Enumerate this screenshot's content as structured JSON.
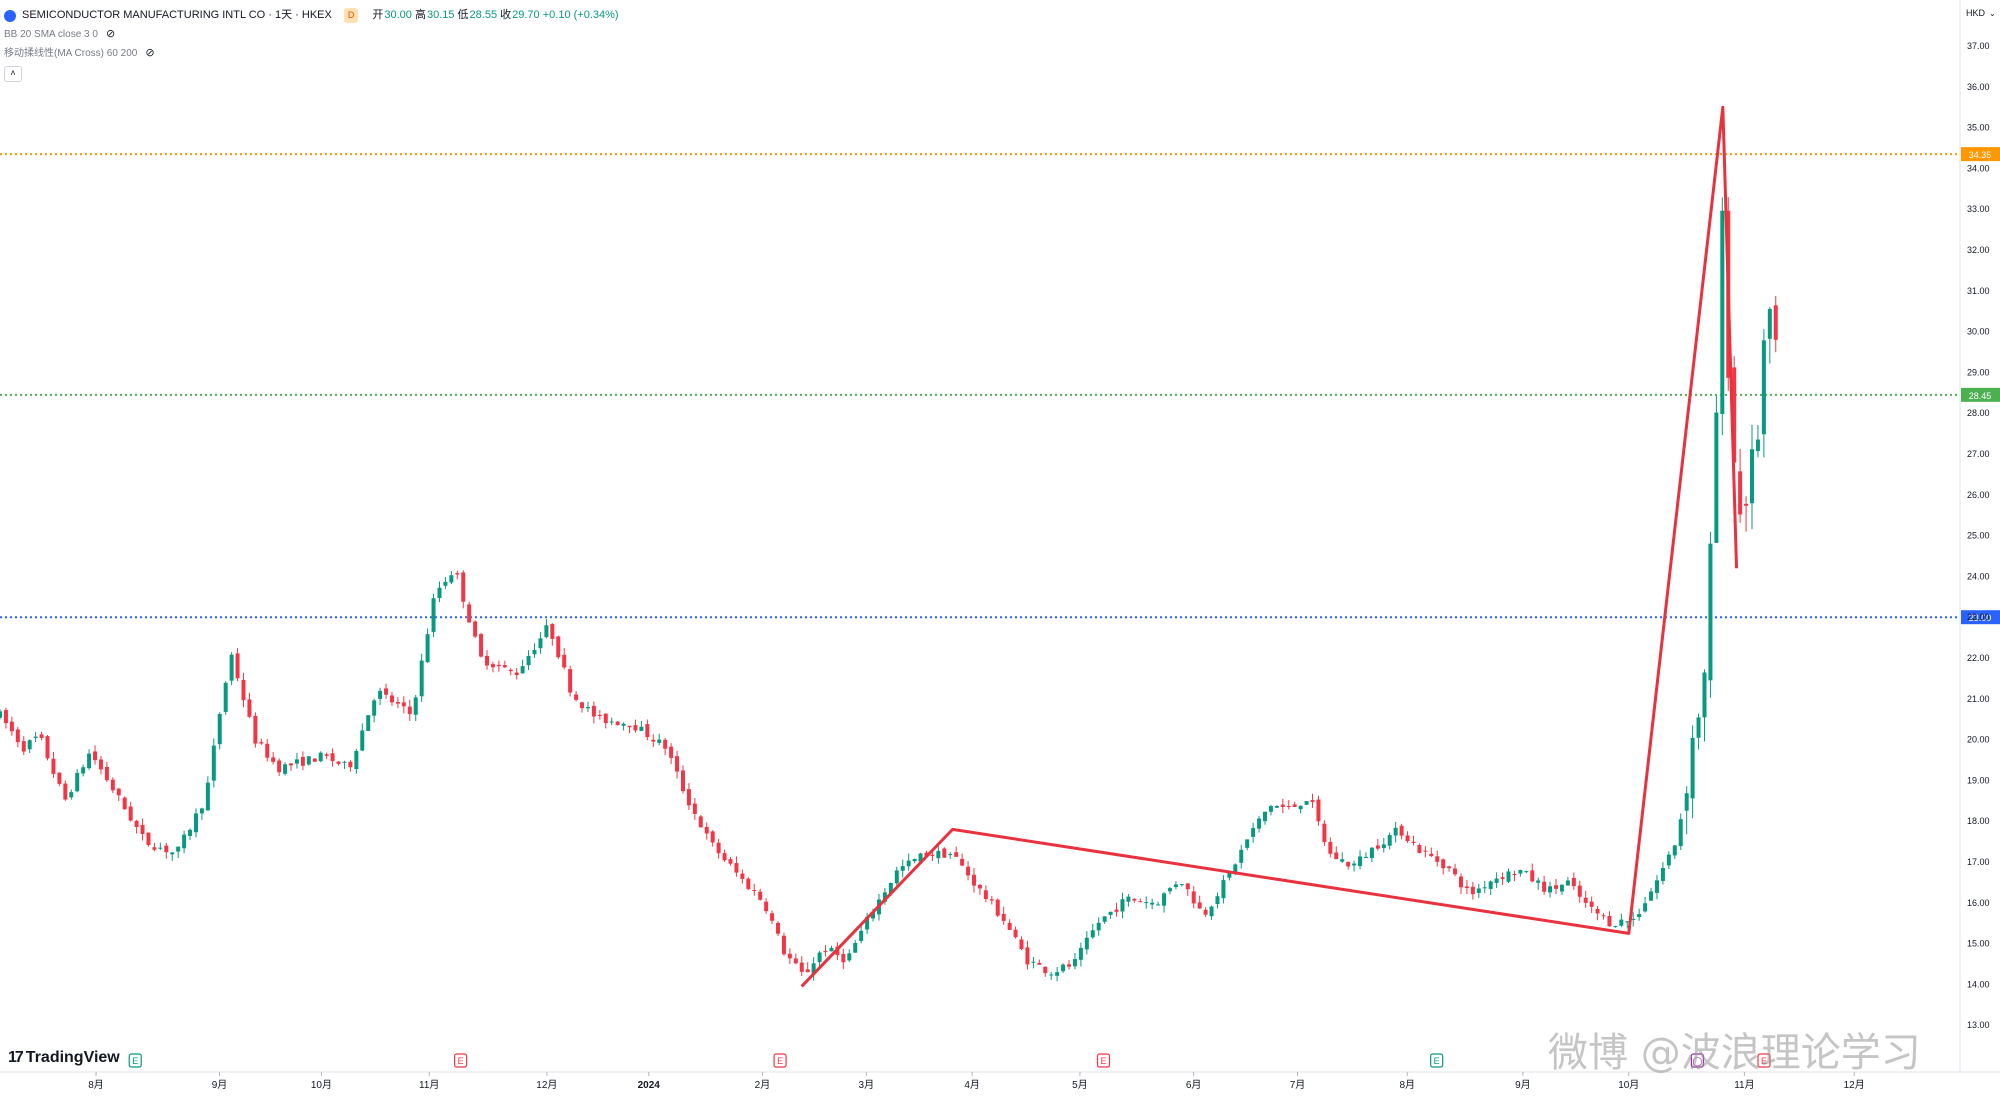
{
  "header": {
    "symbol_title": "SEMICONDUCTOR MANUFACTURING INTL CO · 1天 · HKEX",
    "delay_badge": "D",
    "ohlc": [
      {
        "label": "开",
        "value": "30.00"
      },
      {
        "label": "高",
        "value": "30.15"
      },
      {
        "label": "低",
        "value": "28.55"
      },
      {
        "label": "收",
        "value": "29.70 +0.10 (+0.34%)"
      }
    ],
    "indicators": [
      {
        "label": "BB 20 SMA close 3 0",
        "icon": "eye-crossed-icon"
      },
      {
        "label": "移动揉线性(MA Cross) 60 200",
        "icon": "eye-crossed-icon"
      }
    ],
    "collapse_icon": "chevron-up-icon"
  },
  "currency": "HKD",
  "branding": {
    "logo_text": "TradingView",
    "logo_mark": "17"
  },
  "watermark": "微博 @波浪理论学习",
  "colors": {
    "up": "#089981",
    "down": "#f23645",
    "orange_level": "#ff9800",
    "green_level": "#4caf50",
    "blue_level": "#2962ff",
    "wave_lines": "#e8323e",
    "earnings_badge": "#f23645",
    "dividend_badge": "#089981",
    "split_badge": "#9c27b0"
  },
  "chart_data": {
    "type": "candlestick",
    "y_axis": {
      "range": [
        12.6,
        37.6
      ],
      "ticks": [
        "13.00",
        "14.00",
        "15.00",
        "16.00",
        "17.00",
        "18.00",
        "19.00",
        "20.00",
        "21.00",
        "22.00",
        "23.00",
        "24.00",
        "25.00",
        "26.00",
        "27.00",
        "28.00",
        "29.00",
        "30.00",
        "31.00",
        "32.00",
        "33.00",
        "34.00",
        "35.00",
        "36.00",
        "37.00"
      ]
    },
    "x_axis": {
      "ticks": [
        "8月",
        "9月",
        "10月",
        "11月",
        "12月",
        "2024",
        "2月",
        "3月",
        "4月",
        "5月",
        "6月",
        "7月",
        "8月",
        "9月",
        "10月",
        "11月",
        "12月"
      ]
    },
    "horizontal_levels": [
      {
        "value": 34.35,
        "label": "34.35",
        "color": "#ff9800"
      },
      {
        "value": 28.45,
        "label": "28.45",
        "color": "#4caf50"
      },
      {
        "value": 23.0,
        "label": "23.00",
        "color": "#2962ff"
      }
    ],
    "wave_lines": [
      {
        "t": 0.409,
        "v": 13.95
      },
      {
        "t": 0.486,
        "v": 17.8
      },
      {
        "t": 0.831,
        "v": 15.25
      },
      {
        "t": 0.879,
        "v": 35.5
      },
      {
        "t": 0.886,
        "v": 24.2
      }
    ],
    "anchors": [
      [
        0.0,
        20.6
      ],
      [
        0.012,
        19.8
      ],
      [
        0.02,
        20.1
      ],
      [
        0.033,
        18.5
      ],
      [
        0.046,
        19.7
      ],
      [
        0.06,
        18.6
      ],
      [
        0.074,
        17.5
      ],
      [
        0.09,
        17.2
      ],
      [
        0.105,
        18.6
      ],
      [
        0.113,
        20.9
      ],
      [
        0.118,
        22.1
      ],
      [
        0.13,
        20.0
      ],
      [
        0.142,
        19.3
      ],
      [
        0.165,
        19.6
      ],
      [
        0.178,
        19.3
      ],
      [
        0.192,
        21.2
      ],
      [
        0.21,
        20.6
      ],
      [
        0.222,
        23.6
      ],
      [
        0.232,
        24.2
      ],
      [
        0.245,
        22.0
      ],
      [
        0.263,
        21.6
      ],
      [
        0.28,
        22.8
      ],
      [
        0.292,
        21.1
      ],
      [
        0.305,
        20.5
      ],
      [
        0.322,
        20.4
      ],
      [
        0.34,
        19.8
      ],
      [
        0.35,
        18.6
      ],
      [
        0.362,
        17.5
      ],
      [
        0.378,
        16.6
      ],
      [
        0.39,
        16.0
      ],
      [
        0.4,
        14.8
      ],
      [
        0.41,
        14.2
      ],
      [
        0.42,
        14.9
      ],
      [
        0.432,
        14.6
      ],
      [
        0.445,
        15.8
      ],
      [
        0.458,
        16.8
      ],
      [
        0.472,
        17.2
      ],
      [
        0.486,
        17.2
      ],
      [
        0.5,
        16.3
      ],
      [
        0.512,
        15.6
      ],
      [
        0.524,
        14.6
      ],
      [
        0.536,
        14.3
      ],
      [
        0.548,
        14.5
      ],
      [
        0.56,
        15.5
      ],
      [
        0.575,
        16.1
      ],
      [
        0.59,
        16.0
      ],
      [
        0.602,
        16.6
      ],
      [
        0.614,
        15.7
      ],
      [
        0.626,
        16.6
      ],
      [
        0.638,
        17.7
      ],
      [
        0.648,
        18.4
      ],
      [
        0.658,
        18.3
      ],
      [
        0.668,
        18.6
      ],
      [
        0.678,
        17.2
      ],
      [
        0.69,
        16.9
      ],
      [
        0.702,
        17.4
      ],
      [
        0.714,
        17.8
      ],
      [
        0.724,
        17.3
      ],
      [
        0.738,
        16.9
      ],
      [
        0.75,
        16.2
      ],
      [
        0.762,
        16.6
      ],
      [
        0.775,
        16.8
      ],
      [
        0.79,
        16.3
      ],
      [
        0.8,
        16.5
      ],
      [
        0.81,
        15.9
      ],
      [
        0.822,
        15.5
      ],
      [
        0.834,
        15.6
      ],
      [
        0.846,
        16.6
      ],
      [
        0.856,
        17.6
      ],
      [
        0.864,
        20.1
      ],
      [
        0.87,
        21.5
      ],
      [
        0.875,
        27.0
      ],
      [
        0.879,
        33.0
      ],
      [
        0.883,
        27.6
      ],
      [
        0.888,
        25.5
      ],
      [
        0.892,
        26.2
      ],
      [
        0.897,
        27.6
      ],
      [
        0.901,
        30.4
      ],
      [
        0.906,
        29.7
      ]
    ],
    "event_badges": [
      {
        "t": 0.069,
        "label": "E",
        "kind": "dividend"
      },
      {
        "t": 0.235,
        "label": "E",
        "kind": "earnings"
      },
      {
        "t": 0.398,
        "label": "E",
        "kind": "earnings"
      },
      {
        "t": 0.563,
        "label": "E",
        "kind": "earnings"
      },
      {
        "t": 0.733,
        "label": "E",
        "kind": "dividend"
      },
      {
        "t": 0.866,
        "label": "◯",
        "kind": "split"
      },
      {
        "t": 0.9,
        "label": "E",
        "kind": "earnings"
      }
    ]
  }
}
